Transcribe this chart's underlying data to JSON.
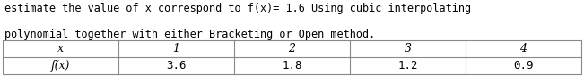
{
  "title_line1": "estimate the value of x correspond to f(x)= 1.6 Using cubic interpolating",
  "title_line2": "polynomial together with either Bracketing or Open method.",
  "col_headers": [
    "x",
    "1",
    "2",
    "3",
    "4"
  ],
  "row_label": "f(x)",
  "row_values": [
    "3.6",
    "1.8",
    "1.2",
    "0.9"
  ],
  "bg_color": "#ffffff",
  "text_color": "#000000",
  "border_color": "#888888",
  "font_size_title": 8.5,
  "font_size_table": 9.0,
  "figwidth": 6.51,
  "figheight": 0.85,
  "dpi": 100
}
